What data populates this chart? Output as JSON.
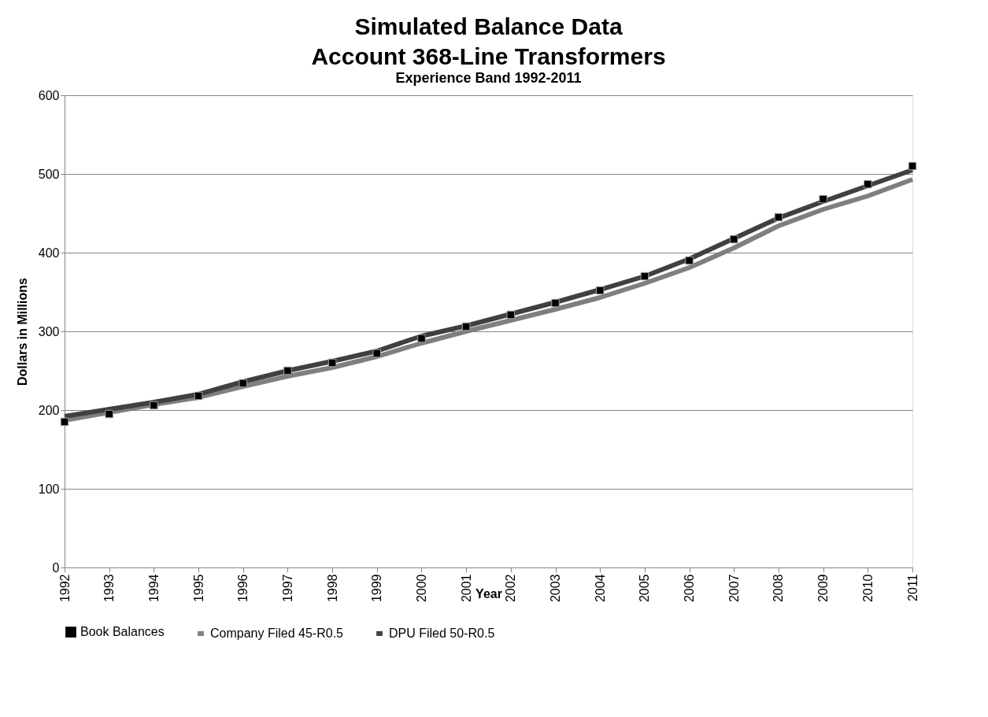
{
  "chart_data": {
    "type": "line",
    "title": "Simulated Balance Data\nAccount 368-Line Transformers",
    "subtitle": "Experience Band 1992-2011",
    "xlabel": "Year",
    "ylabel": "Dollars in Millions",
    "categories": [
      "1992",
      "1993",
      "1994",
      "1995",
      "1996",
      "1997",
      "1998",
      "1999",
      "2000",
      "2001",
      "2002",
      "2003",
      "2004",
      "2005",
      "2006",
      "2007",
      "2008",
      "2009",
      "2010",
      "2011"
    ],
    "series": [
      {
        "name": "Book Balances",
        "type": "scatter",
        "marker": "square",
        "color": "#000000",
        "values": [
          185,
          195,
          206,
          218,
          234,
          250,
          260,
          272,
          291,
          306,
          321,
          336,
          352,
          370,
          390,
          417,
          445,
          468,
          487,
          510
        ]
      },
      {
        "name": "Company Filed 45-R0.5",
        "color": "#7f7f7f",
        "values": [
          187,
          197,
          207,
          216,
          230,
          243,
          254,
          268,
          285,
          300,
          314,
          328,
          343,
          361,
          381,
          406,
          434,
          455,
          472,
          493
        ]
      },
      {
        "name": "DPU Filed 50-R0.5",
        "color": "#404040",
        "values": [
          192,
          201,
          210,
          220,
          236,
          250,
          262,
          275,
          294,
          307,
          322,
          337,
          353,
          370,
          392,
          418,
          444,
          465,
          485,
          505
        ]
      }
    ],
    "ylim": [
      0,
      600
    ],
    "yticks": [
      0,
      100,
      200,
      300,
      400,
      500,
      600
    ],
    "grid": "y",
    "legend": "bottom",
    "line_style": "solid"
  }
}
